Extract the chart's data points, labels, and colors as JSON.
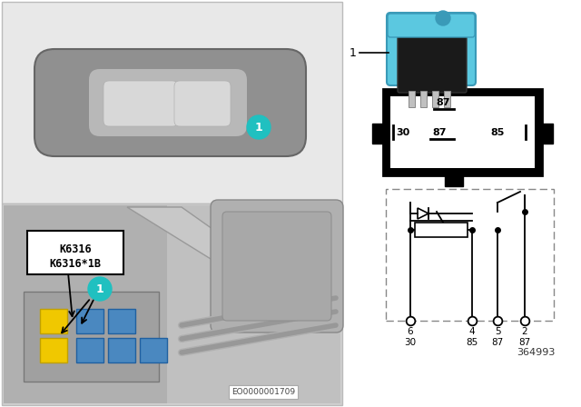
{
  "white": "#ffffff",
  "black": "#000000",
  "top_panel_bg": "#e8e8e8",
  "bot_panel_bg": "#d0d0d0",
  "car_body_color": "#909090",
  "car_roof_color": "#b8b8b8",
  "car_windshield": "#d8d8d8",
  "relay_blue": "#5bc8e0",
  "relay_blue_dark": "#3a9ab8",
  "relay_body_dark": "#1a1a1a",
  "teal_circle": "#20c0c0",
  "yellow": "#f0c800",
  "blue_relay": "#4a88c0",
  "label1": "K6316",
  "label2": "K6316*1B",
  "part_number": "364993",
  "eo_number": "EO0000001709",
  "pin_labels_bottom_num": [
    "6",
    "4",
    "5",
    "2"
  ],
  "pin_labels_bottom_name": [
    "30",
    "85",
    "87",
    "87"
  ],
  "relay_pin_top": "87",
  "relay_pin_30": "30",
  "relay_pin_87": "87",
  "relay_pin_85": "85",
  "panel_border": "#bbbbbb",
  "engine_bg": "#b8b8b8",
  "engine_dark": "#888888",
  "wire_gray": "#999999",
  "structural_gray": "#aaaaaa"
}
